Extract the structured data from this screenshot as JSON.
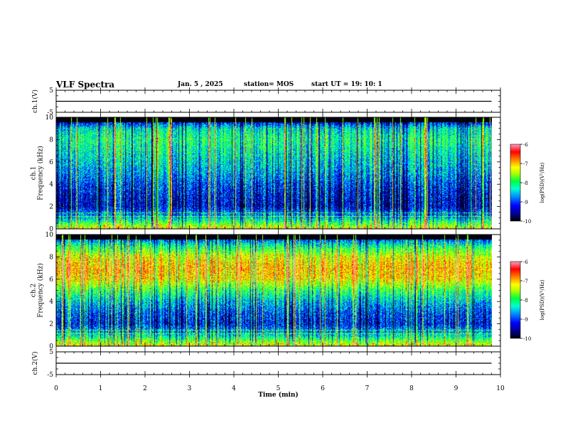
{
  "header": {
    "title": "VLF Spectra",
    "date": "Jan. 5 , 2025",
    "station": "station= MOS",
    "start": "start UT =   19: 10: 1"
  },
  "chart_data": [
    {
      "type": "line",
      "panel": "ch1-waveform",
      "ylabel": "ch.1(V)",
      "ylim": [
        -5,
        5
      ],
      "yticks": [
        5,
        -5
      ],
      "series": [
        {
          "values": [
            0,
            0,
            0,
            0,
            0,
            0,
            0,
            0,
            0,
            0
          ]
        }
      ],
      "x": [
        0,
        1,
        2,
        3,
        4,
        5,
        6,
        7,
        8,
        9.8
      ]
    },
    {
      "type": "heatmap",
      "panel": "ch1-spectrogram",
      "ylabel": "ch.1\nFrequency (kHz)",
      "ylim": [
        0,
        10
      ],
      "yticks": [
        0,
        2,
        4,
        6,
        8,
        10
      ],
      "xlim": [
        0,
        10
      ],
      "colorbar": {
        "label": "log(PSD)(V²/Hz)",
        "range": [
          -10,
          -6
        ],
        "ticks": [
          "-6",
          "-7",
          "-8",
          "-9",
          "-10"
        ]
      },
      "band_profile_khz": [
        0,
        1,
        2,
        3,
        4,
        5,
        6,
        7,
        8,
        9,
        10
      ],
      "band_profile_log_psd": [
        -7.2,
        -8.6,
        -9.3,
        -9.2,
        -9.0,
        -8.7,
        -8.5,
        -8.3,
        -8.1,
        -8.4,
        -9.8
      ]
    },
    {
      "type": "heatmap",
      "panel": "ch2-spectrogram",
      "ylabel": "ch.2\nFrequency (kHz)",
      "ylim": [
        0,
        10
      ],
      "yticks": [
        0,
        2,
        4,
        6,
        8,
        10
      ],
      "xlim": [
        0,
        10
      ],
      "colorbar": {
        "label": "log(PSD)(V²/Hz)",
        "range": [
          -10,
          -6
        ],
        "ticks": [
          "-6",
          "-7",
          "-8",
          "-9",
          "-10"
        ]
      },
      "band_profile_khz": [
        0,
        1,
        2,
        3,
        4,
        5,
        6,
        7,
        8,
        9,
        10
      ],
      "band_profile_log_psd": [
        -7.2,
        -8.5,
        -9.2,
        -9.0,
        -8.6,
        -8.0,
        -7.2,
        -7.0,
        -7.3,
        -8.2,
        -9.5
      ]
    },
    {
      "type": "line",
      "panel": "ch2-waveform",
      "ylabel": "ch.2(V)",
      "ylim": [
        -5,
        5
      ],
      "yticks": [
        5,
        -5
      ],
      "series": [
        {
          "values": [
            0,
            0,
            0,
            0,
            0,
            0,
            0,
            0,
            0,
            0
          ]
        }
      ],
      "x": [
        0,
        1,
        2,
        3,
        4,
        5,
        6,
        7,
        8,
        9.8
      ]
    }
  ],
  "xaxis": {
    "label": "Time (min)",
    "ticks": [
      "0",
      "1",
      "2",
      "3",
      "4",
      "5",
      "6",
      "7",
      "8",
      "9",
      "10"
    ],
    "xlim": [
      0,
      10
    ],
    "data_end": 9.8
  },
  "colors": {
    "colormap": [
      "#000000",
      "#00007a",
      "#0000ff",
      "#0090ff",
      "#00ffd0",
      "#00ff40",
      "#b0ff00",
      "#ffff00",
      "#ff8000",
      "#ff0000",
      "#ffa0c0"
    ]
  }
}
